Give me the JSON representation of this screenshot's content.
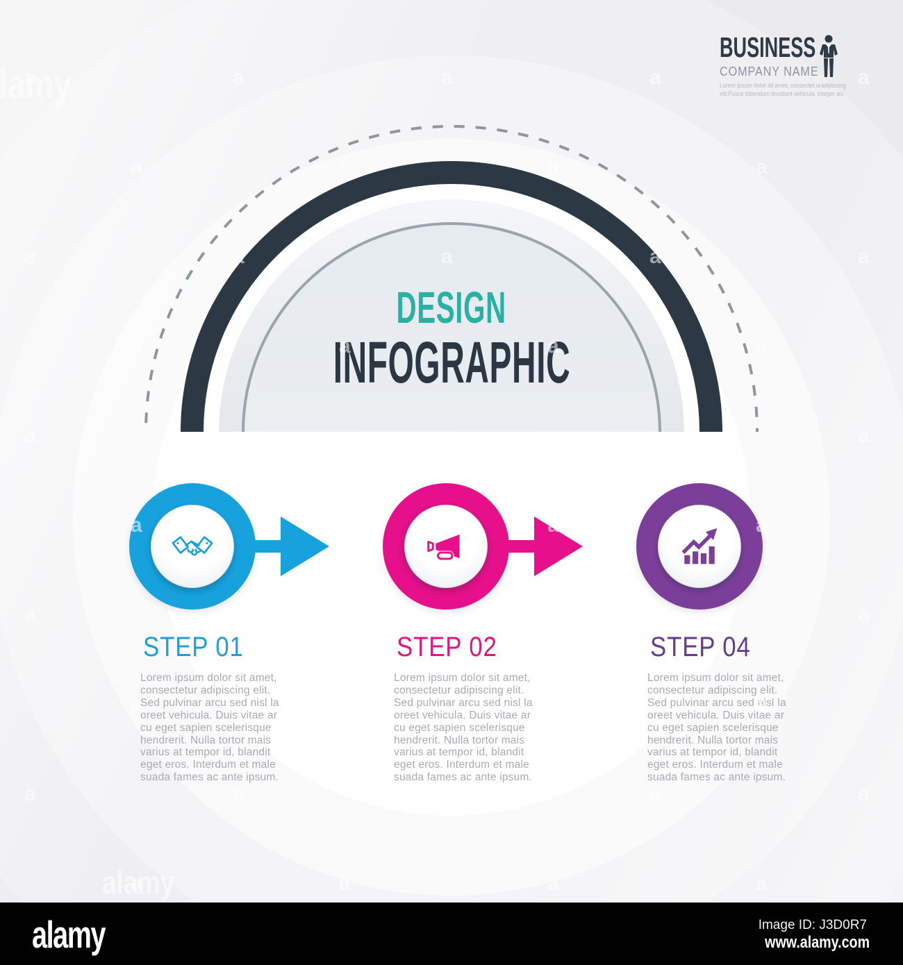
{
  "header": {
    "brand": "BUSINESS",
    "company": "COMPANY NAME",
    "tagline": "Lorem ipsum dolor sit amet, consectet uradipiscing\nelit.Fusce bibendum tincidunt vehicula. Integer au.",
    "icon": "businessman-icon"
  },
  "hero": {
    "title_top": "DESIGN",
    "title_bottom": "INFOGRAPHIC"
  },
  "steps": [
    {
      "label": "STEP 01",
      "icon": "handshake-icon",
      "color": "#17a2de",
      "has_arrow": true,
      "body": "Lorem ipsum dolor sit amet,\nconsectetur adipiscing elit.\nSed pulvinar arcu sed nisl la\noreet vehicula. Duis vitae ar\ncu eget sapien scelerisque\nhendrerit. Nulla tortor mais\nvarius at tempor id, blandit\neget eros. Interdum et male\nsuada fames ac ante ipsum."
    },
    {
      "label": "STEP 02",
      "icon": "megaphone-icon",
      "color": "#e5108a",
      "has_arrow": true,
      "body": "Lorem ipsum dolor sit amet,\nconsectetur adipiscing elit.\nSed pulvinar arcu sed nisl la\noreet vehicula. Duis vitae ar\ncu eget sapien scelerisque\nhendrerit. Nulla tortor mais\nvarius at tempor id, blandit\neget eros. Interdum et male\nsuada fames ac ante ipsum."
    },
    {
      "label": "STEP 04",
      "icon": "growth-chart-icon",
      "color": "#7b3f9a",
      "has_arrow": false,
      "body": "Lorem ipsum dolor sit amet,\nconsectetur adipiscing elit.\nSed pulvinar arcu sed nisl la\noreet vehicula. Duis vitae ar\ncu eget sapien scelerisque\nhendrerit. Nulla tortor mais\nvarius at tempor id, blandit\neget eros. Interdum et male\nsuada fames ac ante ipsum."
    }
  ],
  "watermark": {
    "glyph": "a",
    "word": "alamy"
  },
  "footer": {
    "logo": "alamy",
    "image_id": "Image ID: J3D0R7",
    "url": "www.alamy.com"
  },
  "colors": {
    "dark_navy": "#2d3845",
    "teal": "#29b2a3",
    "blue": "#17a2de",
    "pink": "#e5108a",
    "purple": "#7b3f9a",
    "body_text": "#a8abaf",
    "background": "#efeff2"
  }
}
